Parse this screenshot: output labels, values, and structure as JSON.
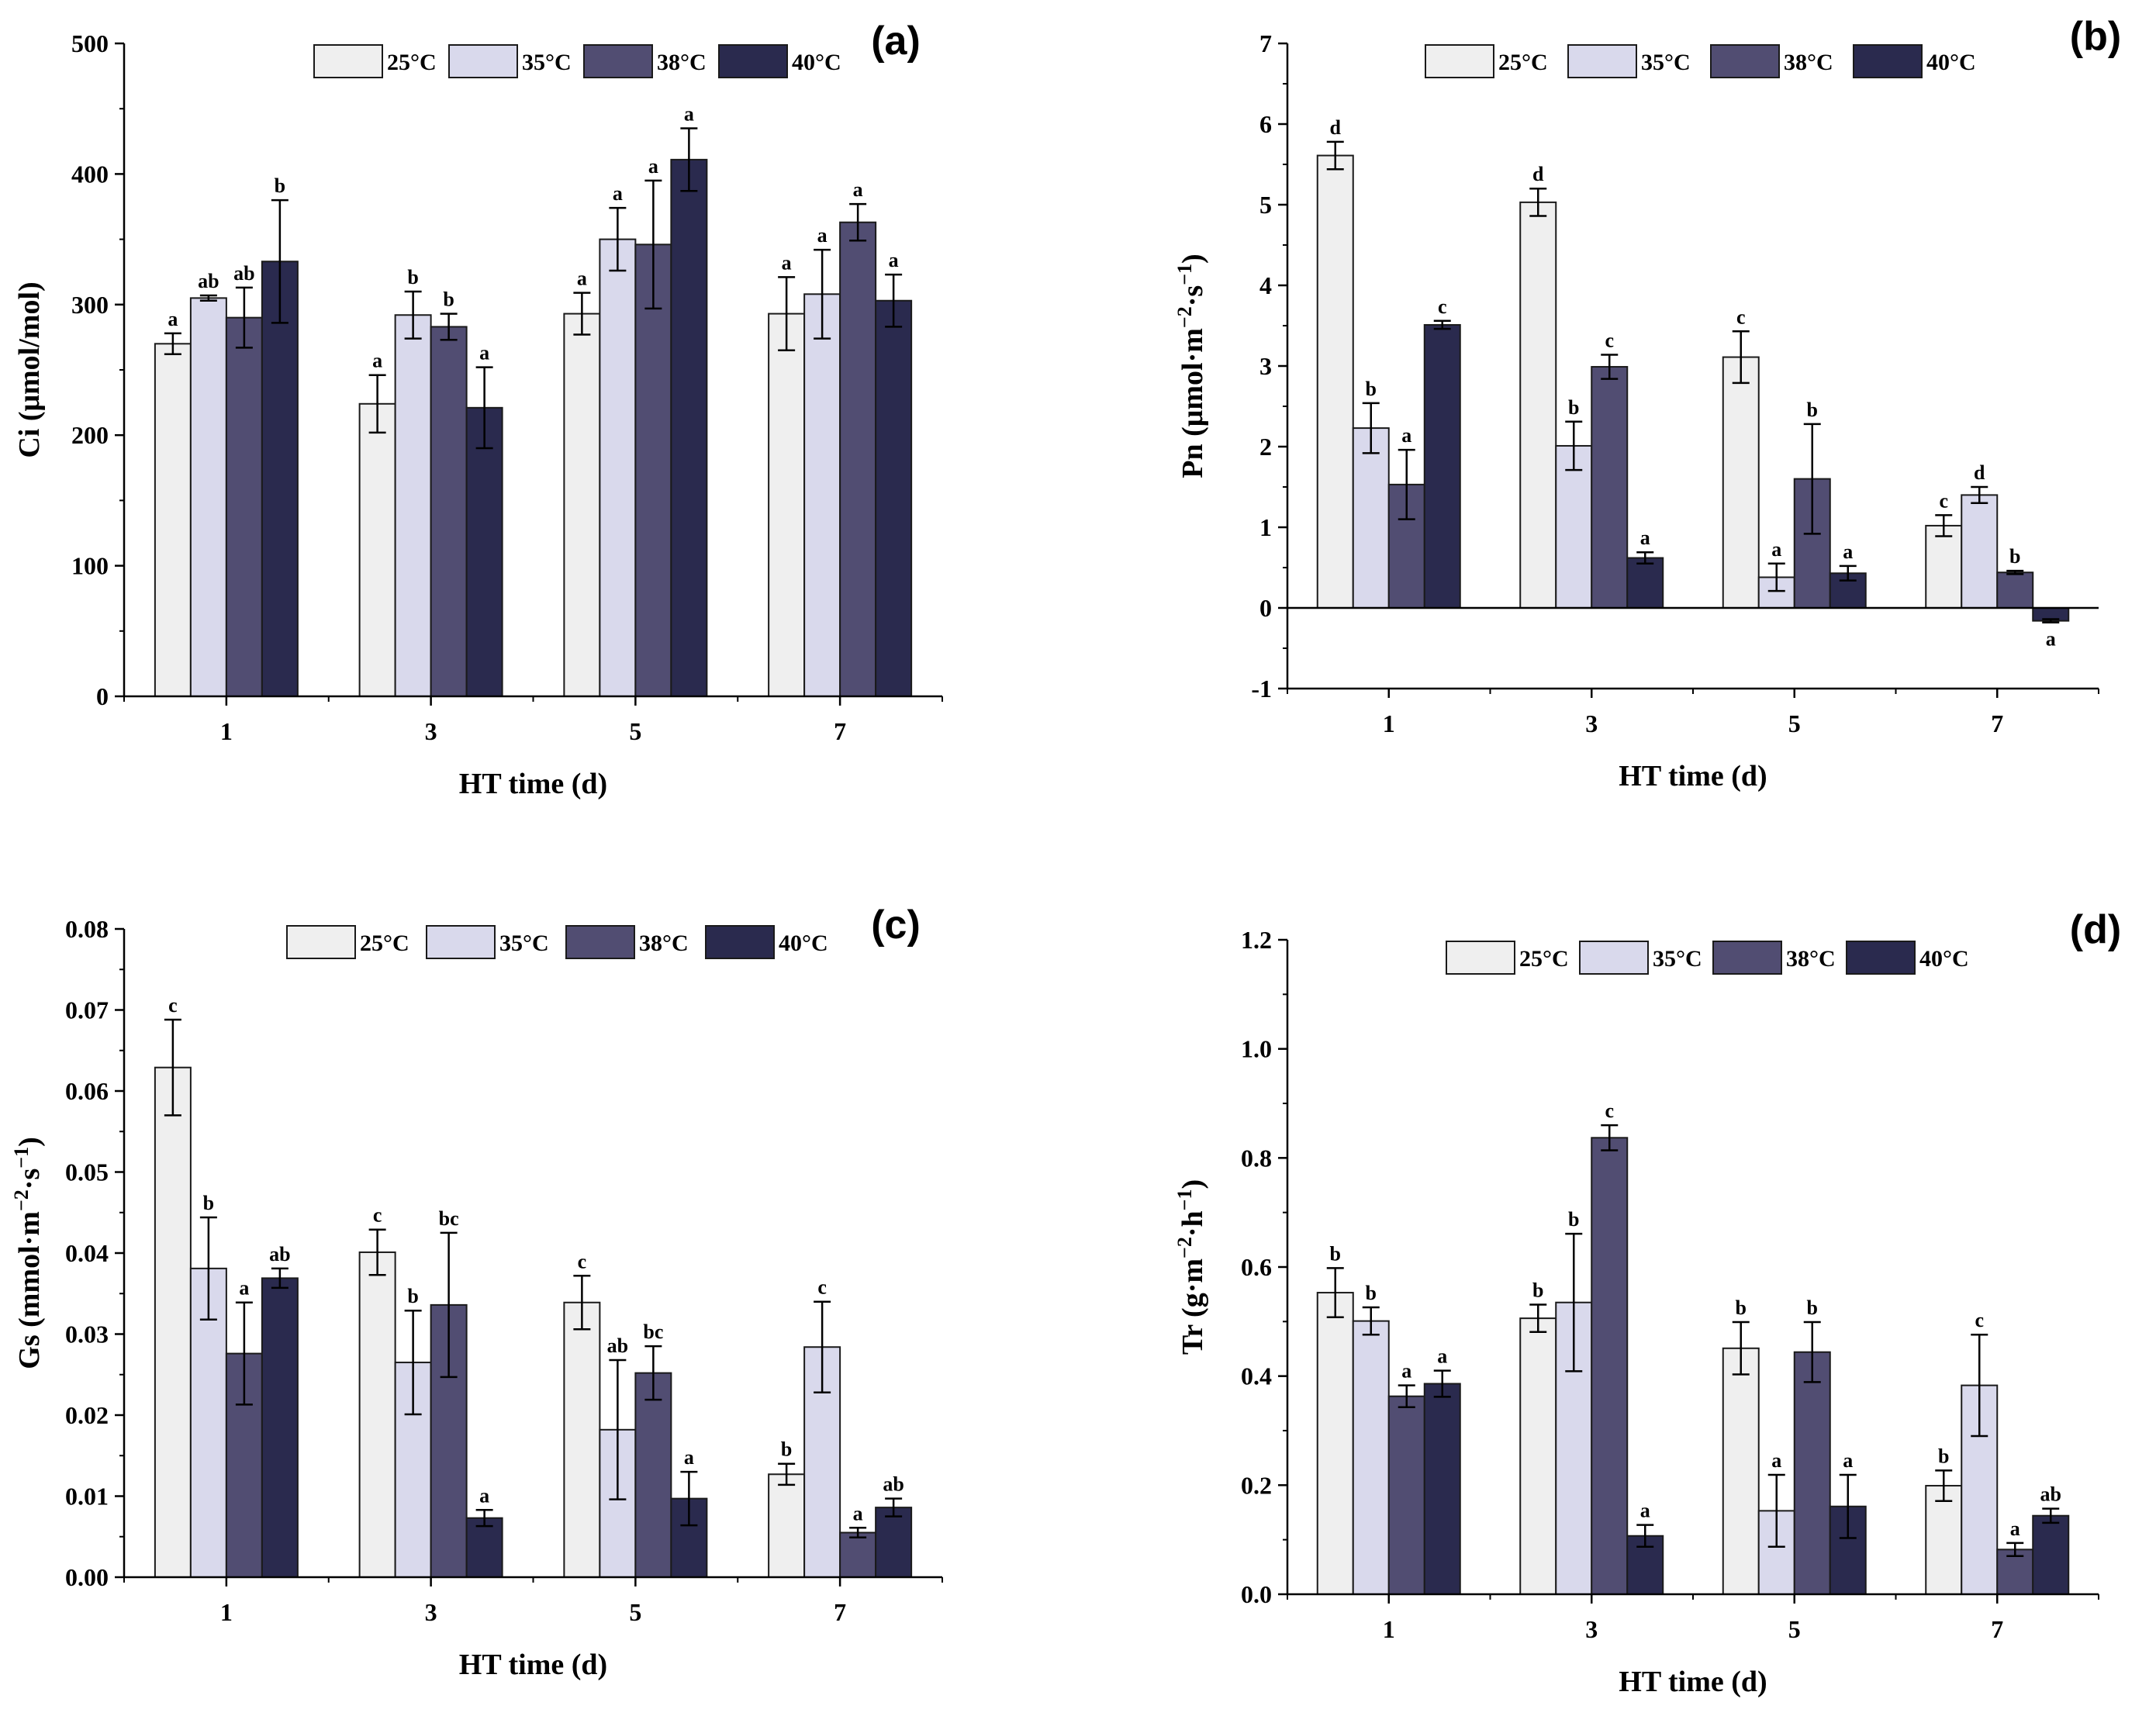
{
  "colors": {
    "25C": "#efefef",
    "35C": "#d9d9ec",
    "38C": "#514d72",
    "40C": "#2a2a4e"
  },
  "legend": [
    "25°C",
    "35°C",
    "38°C",
    "40°C"
  ],
  "chart_data": [
    {
      "type": "bar",
      "panel": "(a)",
      "xlabel": "HT time (d)",
      "ylabel": "Ci (μmol/mol)",
      "ylabel_parts": [
        "Ci (μmol/mol)"
      ],
      "categories": [
        "1",
        "3",
        "5",
        "7"
      ],
      "ylim": [
        0,
        500
      ],
      "yticks": [
        "0",
        "100",
        "200",
        "300",
        "400",
        "500"
      ],
      "series": [
        {
          "name": "25°C",
          "values": [
            270,
            224,
            293,
            293
          ],
          "errors": [
            8,
            22,
            16,
            28
          ],
          "sig": [
            "a",
            "a",
            "a",
            "a"
          ]
        },
        {
          "name": "35°C",
          "values": [
            305,
            292,
            350,
            308
          ],
          "errors": [
            2,
            18,
            24,
            34
          ],
          "sig": [
            "ab",
            "b",
            "a",
            "a"
          ]
        },
        {
          "name": "38°C",
          "values": [
            290,
            283,
            346,
            363
          ],
          "errors": [
            23,
            10,
            49,
            14
          ],
          "sig": [
            "ab",
            "b",
            "a",
            "a"
          ]
        },
        {
          "name": "40°C",
          "values": [
            333,
            221,
            411,
            303
          ],
          "errors": [
            47,
            31,
            24,
            20
          ],
          "sig": [
            "b",
            "a",
            "a",
            "a"
          ]
        }
      ]
    },
    {
      "type": "bar",
      "panel": "(b)",
      "xlabel": "HT time (d)",
      "ylabel": "Pn (μmol·m−2·s−1)",
      "ylabel_parts": [
        "Pn (μmol·m",
        "−2",
        "·s",
        "−1",
        ")"
      ],
      "categories": [
        "1",
        "3",
        "5",
        "7"
      ],
      "ylim": [
        -1,
        7
      ],
      "yticks": [
        "-1",
        "0",
        "1",
        "2",
        "3",
        "4",
        "5",
        "6",
        "7"
      ],
      "series": [
        {
          "name": "25°C",
          "values": [
            5.61,
            5.03,
            3.11,
            1.02
          ],
          "errors": [
            0.17,
            0.17,
            0.32,
            0.13
          ],
          "sig": [
            "d",
            "d",
            "c",
            "c"
          ]
        },
        {
          "name": "35°C",
          "values": [
            2.23,
            2.01,
            0.38,
            1.4
          ],
          "errors": [
            0.31,
            0.3,
            0.17,
            0.1
          ],
          "sig": [
            "b",
            "b",
            "a",
            "d"
          ]
        },
        {
          "name": "38°C",
          "values": [
            1.53,
            2.99,
            1.6,
            0.44
          ],
          "errors": [
            0.43,
            0.15,
            0.68,
            0.02
          ],
          "sig": [
            "a",
            "c",
            "b",
            "b"
          ]
        },
        {
          "name": "40°C",
          "values": [
            3.51,
            0.62,
            0.43,
            -0.16
          ],
          "errors": [
            0.05,
            0.07,
            0.09,
            0.02
          ],
          "sig": [
            "c",
            "a",
            "a",
            "a"
          ]
        }
      ]
    },
    {
      "type": "bar",
      "panel": "(c)",
      "xlabel": "HT time (d)",
      "ylabel": "Gs (mmol·m−2·s−1)",
      "ylabel_parts": [
        "Gs (mmol·m",
        "−2",
        "·s",
        "−1",
        ")"
      ],
      "categories": [
        "1",
        "3",
        "5",
        "7"
      ],
      "ylim": [
        0,
        0.08
      ],
      "yticks": [
        "0.00",
        "0.01",
        "0.02",
        "0.03",
        "0.04",
        "0.05",
        "0.06",
        "0.07",
        "0.08"
      ],
      "series": [
        {
          "name": "25°C",
          "values": [
            0.0629,
            0.0401,
            0.0339,
            0.0127
          ],
          "errors": [
            0.0059,
            0.0028,
            0.0033,
            0.0013
          ],
          "sig": [
            "c",
            "c",
            "c",
            "b"
          ]
        },
        {
          "name": "35°C",
          "values": [
            0.0381,
            0.0265,
            0.0182,
            0.0284
          ],
          "errors": [
            0.0063,
            0.0064,
            0.0086,
            0.0056
          ],
          "sig": [
            "b",
            "b",
            "ab",
            "c"
          ]
        },
        {
          "name": "38°C",
          "values": [
            0.0276,
            0.0336,
            0.0252,
            0.0055
          ],
          "errors": [
            0.0063,
            0.0089,
            0.0033,
            0.0006
          ],
          "sig": [
            "a",
            "bc",
            "bc",
            "a"
          ]
        },
        {
          "name": "40°C",
          "values": [
            0.0369,
            0.0073,
            0.0097,
            0.0086
          ],
          "errors": [
            0.0012,
            0.001,
            0.0033,
            0.0011
          ],
          "sig": [
            "ab",
            "a",
            "a",
            "ab"
          ]
        }
      ]
    },
    {
      "type": "bar",
      "panel": "(d)",
      "xlabel": "HT time (d)",
      "ylabel": "Tr (g·m−2·h−1)",
      "ylabel_parts": [
        "Tr (g·m",
        "−2",
        "·h",
        "−1",
        ")"
      ],
      "categories": [
        "1",
        "3",
        "5",
        "7"
      ],
      "ylim": [
        0,
        1.2
      ],
      "yticks": [
        "0.0",
        "0.2",
        "0.4",
        "0.6",
        "0.8",
        "1.0",
        "1.2"
      ],
      "series": [
        {
          "name": "25°C",
          "values": [
            0.553,
            0.506,
            0.451,
            0.199
          ],
          "errors": [
            0.045,
            0.025,
            0.048,
            0.028
          ],
          "sig": [
            "b",
            "b",
            "b",
            "b"
          ]
        },
        {
          "name": "35°C",
          "values": [
            0.501,
            0.535,
            0.153,
            0.383
          ],
          "errors": [
            0.025,
            0.126,
            0.066,
            0.093
          ],
          "sig": [
            "b",
            "b",
            "a",
            "c"
          ]
        },
        {
          "name": "38°C",
          "values": [
            0.363,
            0.837,
            0.444,
            0.082
          ],
          "errors": [
            0.02,
            0.023,
            0.055,
            0.012
          ],
          "sig": [
            "a",
            "c",
            "b",
            "a"
          ]
        },
        {
          "name": "40°C",
          "values": [
            0.386,
            0.107,
            0.161,
            0.144
          ],
          "errors": [
            0.024,
            0.02,
            0.058,
            0.013
          ],
          "sig": [
            "a",
            "a",
            "a",
            "ab"
          ]
        }
      ]
    }
  ]
}
